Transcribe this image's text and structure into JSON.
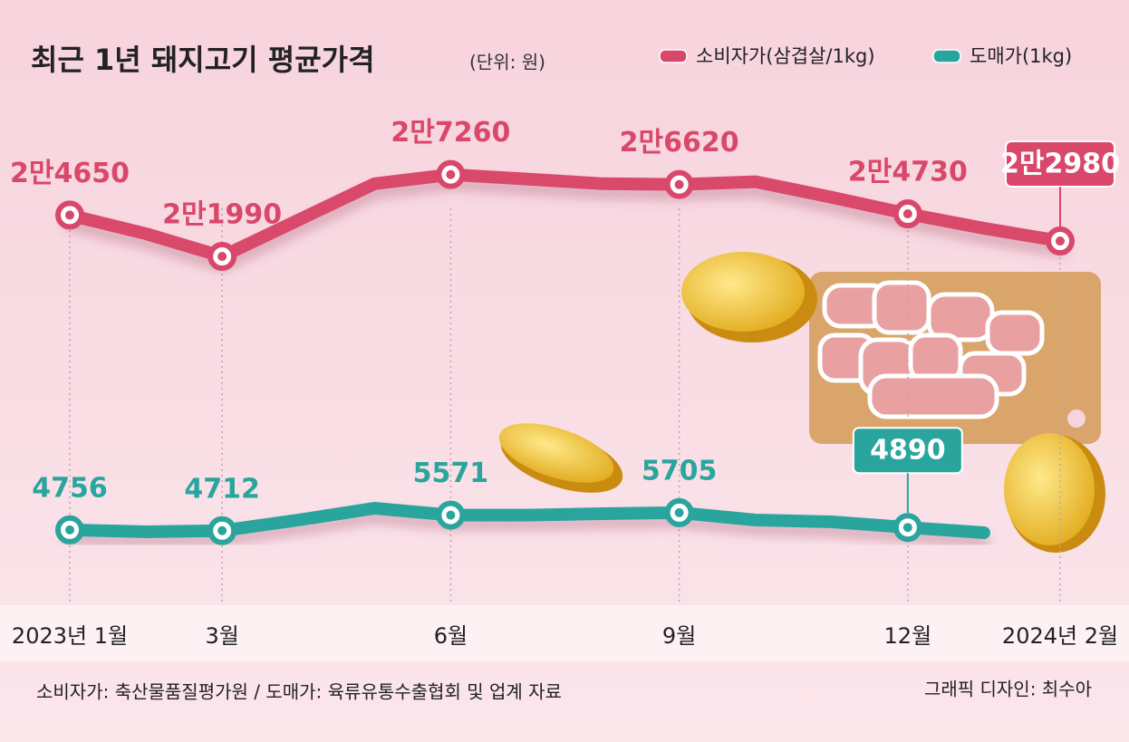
{
  "chart_data": {
    "type": "line",
    "title": "최근 1년 돼지고기 평균가격",
    "subtitle": "(단위: 원)",
    "categories": [
      "2023년 1월",
      null,
      "3월",
      null,
      null,
      "6월",
      null,
      null,
      "9월",
      null,
      null,
      "12월",
      null,
      "2024년 2월"
    ],
    "series": [
      {
        "name": "소비자가(삼겹살/1kg)",
        "color": "#d9486b",
        "axis": "y",
        "values": [
          24650,
          23450,
          21990,
          24330,
          26670,
          27260,
          26970,
          26670,
          26620,
          26800,
          25800,
          24730,
          23800,
          22980
        ],
        "value_labels": [
          "2만4650",
          null,
          "2만1990",
          null,
          null,
          "2만7260",
          null,
          null,
          "2만6620",
          null,
          null,
          "2만4730",
          null,
          "2만2980"
        ]
      },
      {
        "name": "도매가(1kg)",
        "color": "#2aa59d",
        "axis": "y2",
        "values": [
          4756,
          4650,
          4712,
          5300,
          5950,
          5571,
          5571,
          5650,
          5705,
          5300,
          5200,
          4890,
          4600,
          null
        ],
        "value_labels": [
          "4756",
          null,
          "4712",
          null,
          null,
          "5571",
          null,
          null,
          "5705",
          null,
          null,
          "4890",
          null,
          null
        ]
      }
    ],
    "ylim": [
      0,
      35000
    ],
    "y2lim": [
      1000,
      31000
    ],
    "source": "소비자가: 축산물품질평가원 / 도매가: 육류유통수출협회 및 업계 자료",
    "credit": "그래픽 디자인: 최수아"
  }
}
